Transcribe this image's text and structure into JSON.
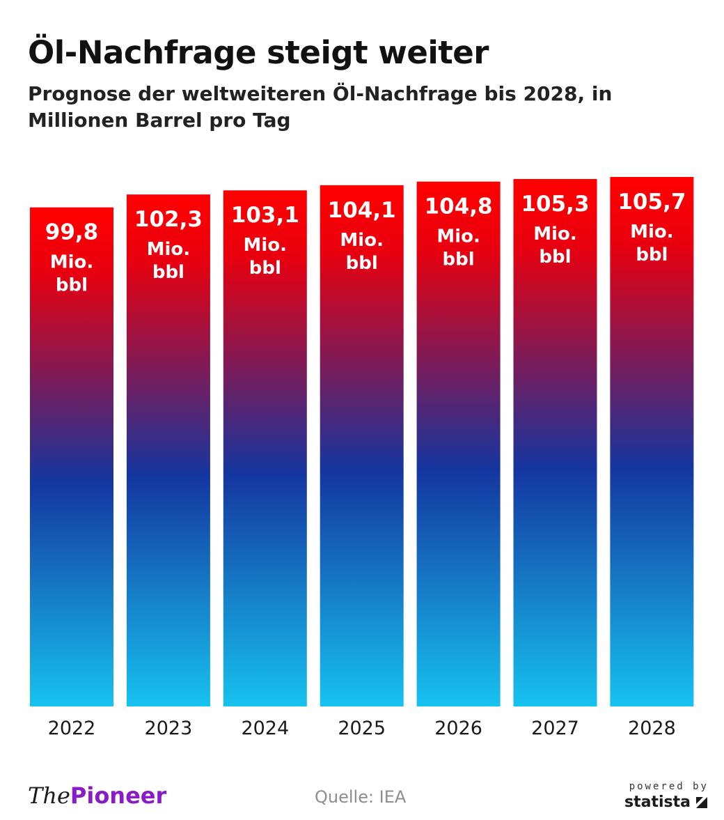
{
  "header": {
    "title": "Öl-Nachfrage steigt weiter",
    "subtitle": "Prognose der weltweiteren Öl-Nachfrage bis 2028, in Millionen Barrel pro Tag"
  },
  "colors": {
    "bar_top": "#ff0000",
    "bar_mid": "#1436a0",
    "bar_bottom": "#17c2ef",
    "brand_pioneer": "#8a1cc8",
    "source_text": "#8d8d8d"
  },
  "chart_data": {
    "type": "bar",
    "categories": [
      "2022",
      "2023",
      "2024",
      "2025",
      "2026",
      "2027",
      "2028"
    ],
    "values": [
      99.8,
      102.3,
      103.1,
      104.1,
      104.8,
      105.3,
      105.7
    ],
    "value_labels": [
      "99,8",
      "102,3",
      "103,1",
      "104,1",
      "104,8",
      "105,3",
      "105,7"
    ],
    "unit_lines": [
      "Mio.",
      "bbl"
    ],
    "title": "Öl-Nachfrage steigt weiter",
    "subtitle": "Prognose der weltweiteren Öl-Nachfrage bis 2028, in Millionen Barrel pro Tag",
    "xlabel": "",
    "ylabel": "",
    "ylim": [
      0,
      105.7
    ],
    "grid": false,
    "legend": "none"
  },
  "footer": {
    "brand_prefix": "The",
    "brand_name": "Pioneer",
    "source": "Quelle: IEA",
    "powered_by": "powered by",
    "statista": "statista",
    "statista_icon": "statista-logo-icon"
  }
}
